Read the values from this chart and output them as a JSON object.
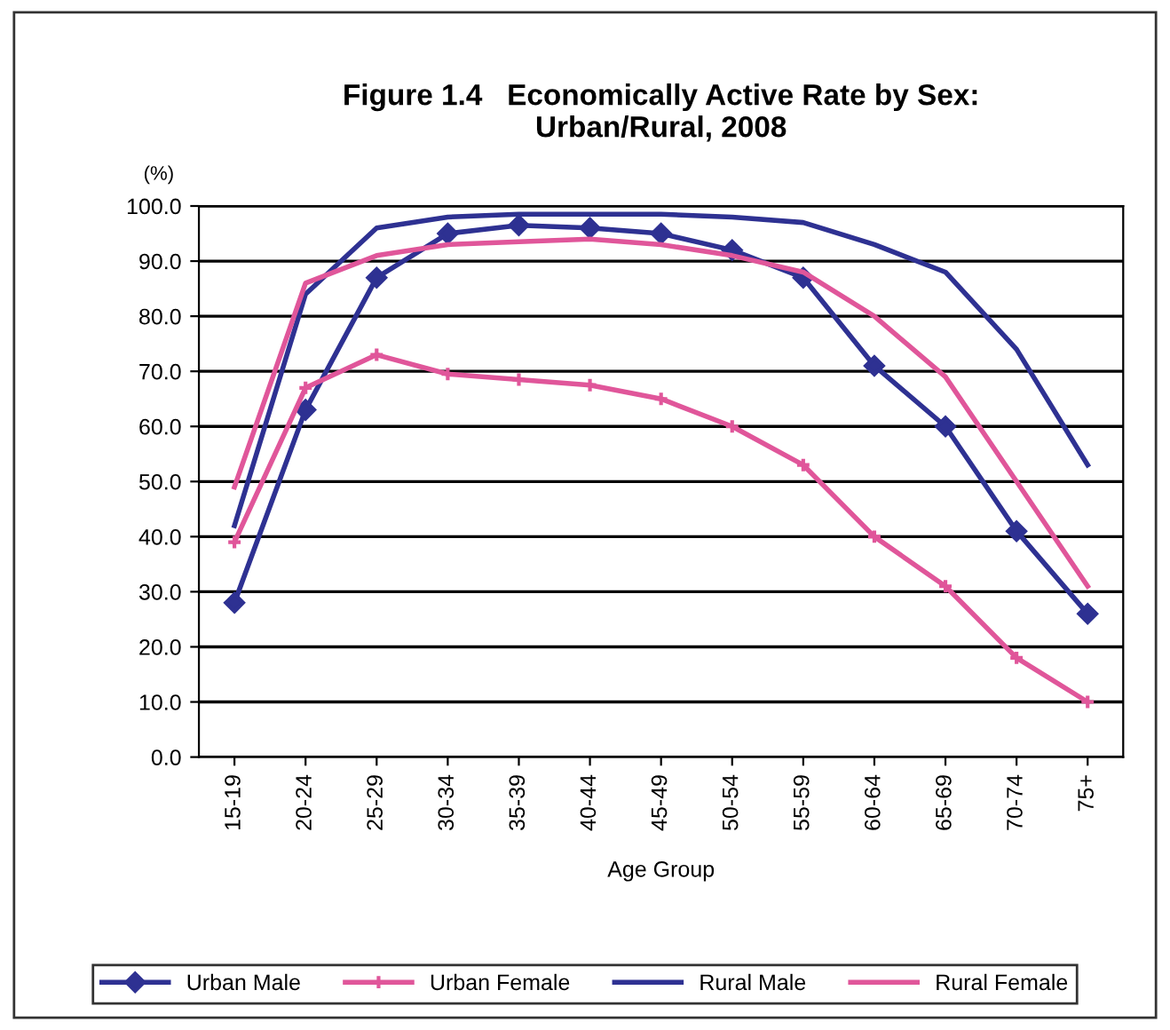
{
  "chart_data": {
    "type": "line",
    "title": "Figure 1.4   Economically Active Rate by Sex:\nUrban/Rural, 2008",
    "ylabel": "(%)",
    "xlabel": "Age Group",
    "categories": [
      "15-19",
      "20-24",
      "25-29",
      "30-34",
      "35-39",
      "40-44",
      "45-49",
      "50-54",
      "55-59",
      "60-64",
      "65-69",
      "70-74",
      "75+"
    ],
    "series": [
      {
        "name": "Urban Male",
        "color": "#2e3192",
        "marker": "diamond",
        "values": [
          28,
          63,
          87,
          95,
          96.5,
          96,
          95,
          92,
          87,
          71,
          60,
          41,
          26
        ]
      },
      {
        "name": "Urban Female",
        "color": "#e0569a",
        "marker": "cross",
        "values": [
          39,
          67,
          73,
          69.5,
          68.5,
          67.5,
          65,
          60,
          53,
          40,
          31,
          18,
          10
        ]
      },
      {
        "name": "Rural Male",
        "color": "#2e3192",
        "marker": "none",
        "values": [
          42,
          84,
          96,
          98,
          98.5,
          98.5,
          98.5,
          98,
          97,
          93,
          88,
          74,
          53
        ]
      },
      {
        "name": "Rural Female",
        "color": "#e0569a",
        "marker": "none",
        "values": [
          49,
          86,
          91,
          93,
          93.5,
          94,
          93,
          91,
          88,
          80,
          69,
          50,
          31
        ]
      }
    ],
    "ylim": [
      0,
      100
    ],
    "yticks": [
      {
        "value": 0,
        "label": "0.0"
      },
      {
        "value": 10,
        "label": "10.0"
      },
      {
        "value": 20,
        "label": "20.0"
      },
      {
        "value": 30,
        "label": "30.0"
      },
      {
        "value": 40,
        "label": "40.0"
      },
      {
        "value": 50,
        "label": "50.0"
      },
      {
        "value": 60,
        "label": "60.0"
      },
      {
        "value": 70,
        "label": "70.0"
      },
      {
        "value": 80,
        "label": "80.0"
      },
      {
        "value": 90,
        "label": "90.0"
      },
      {
        "value": 100,
        "label": "100.0"
      }
    ],
    "grid": "y",
    "legend": "bottom",
    "line_style": "solid"
  }
}
